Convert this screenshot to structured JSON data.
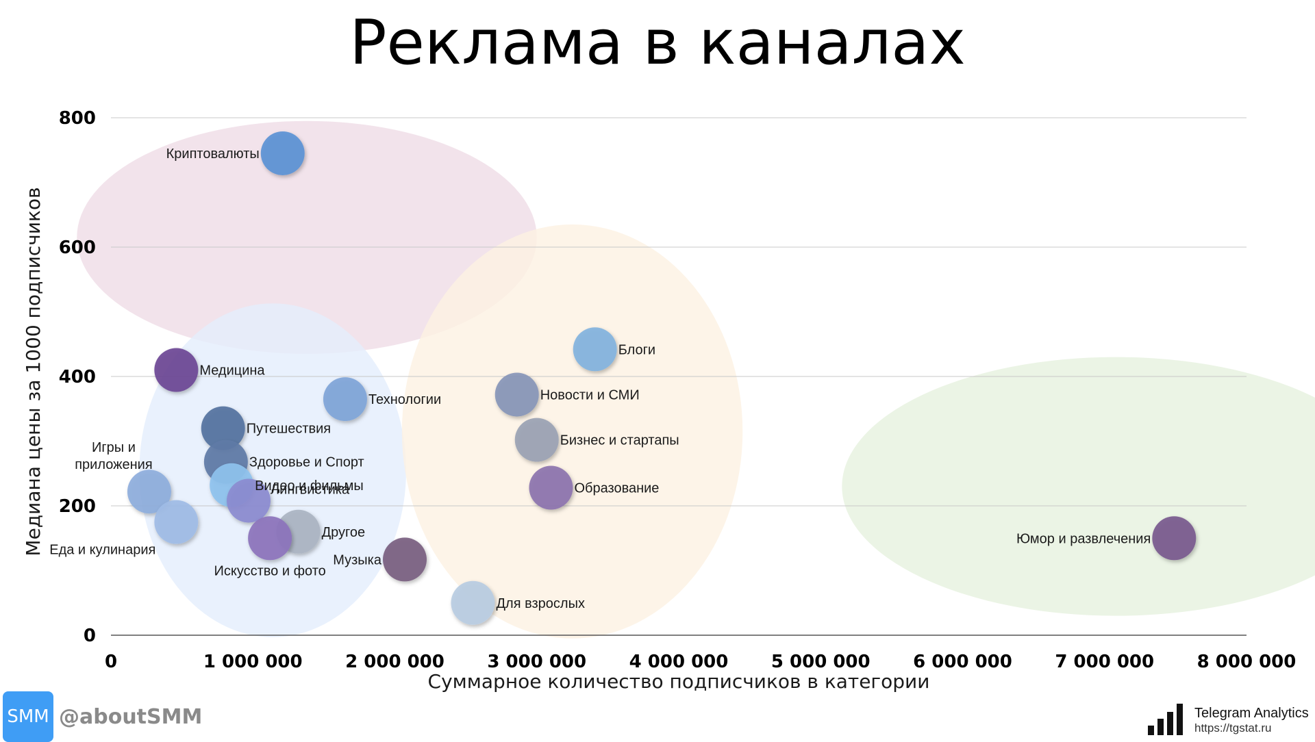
{
  "title": "Реклама в каналах",
  "brand": {
    "logo_text": "SMM",
    "handle": "@aboutSMM",
    "logo_color": "#3f9df5"
  },
  "source": {
    "name": "Telegram Analytics",
    "url": "https://tgstat.ru"
  },
  "chart_data": {
    "type": "scatter",
    "title": "Реклама в каналах",
    "xlabel": "Суммарное количество подписчиков в категории",
    "ylabel": "Медиана цены за 1000 подписчиков",
    "xlim": [
      0,
      8000000
    ],
    "ylim": [
      0,
      800
    ],
    "grid": "horizontal",
    "x_ticks": [
      {
        "value": 0,
        "label": "0"
      },
      {
        "value": 1000000,
        "label": "1 000 000"
      },
      {
        "value": 2000000,
        "label": "2 000 000"
      },
      {
        "value": 3000000,
        "label": "3 000 000"
      },
      {
        "value": 4000000,
        "label": "4 000 000"
      },
      {
        "value": 5000000,
        "label": "5 000 000"
      },
      {
        "value": 6000000,
        "label": "6 000 000"
      },
      {
        "value": 7000000,
        "label": "7 000 000"
      },
      {
        "value": 8000000,
        "label": "8 000 000"
      }
    ],
    "y_ticks": [
      {
        "value": 0,
        "label": "0"
      },
      {
        "value": 200,
        "label": "200"
      },
      {
        "value": 400,
        "label": "400"
      },
      {
        "value": 600,
        "label": "600"
      },
      {
        "value": 800,
        "label": "800"
      }
    ],
    "clusters": [
      {
        "x": 1380000,
        "y": 615,
        "rx": 1620000,
        "ry": 180,
        "color": "#efdce6"
      },
      {
        "x": 1140000,
        "y": 255,
        "rx": 940000,
        "ry": 258,
        "color": "#e4eefc"
      },
      {
        "x": 3250000,
        "y": 315,
        "rx": 1200000,
        "ry": 320,
        "color": "#fdf1e2"
      },
      {
        "x": 7080000,
        "y": 230,
        "rx": 1930000,
        "ry": 200,
        "color": "#e6f1de"
      }
    ],
    "points": [
      {
        "name": "Криптовалюты",
        "x": 1210000,
        "y": 745,
        "color": "#5b93d5"
      },
      {
        "name": "Медицина",
        "x": 460000,
        "y": 410,
        "color": "#6c4796"
      },
      {
        "name": "Технологии",
        "x": 1650000,
        "y": 365,
        "color": "#7fa5d8"
      },
      {
        "name": "Путешествия",
        "x": 790000,
        "y": 320,
        "color": "#5573a0"
      },
      {
        "name": "Игры и приложения",
        "x": 270000,
        "y": 222,
        "color": "#8eaedc"
      },
      {
        "name": "Здоровье и Спорт",
        "x": 810000,
        "y": 268,
        "color": "#5f7ba6"
      },
      {
        "name": "Видео и фильмы",
        "x": 850000,
        "y": 232,
        "color": "#8ec2ee"
      },
      {
        "name": "Лингвистика",
        "x": 970000,
        "y": 208,
        "color": "#8b8bd0"
      },
      {
        "name": "Еда и кулинария",
        "x": 460000,
        "y": 175,
        "color": "#9fbce6"
      },
      {
        "name": "Другое",
        "x": 1320000,
        "y": 160,
        "color": "#aab4c2"
      },
      {
        "name": "Искусство и фото",
        "x": 1120000,
        "y": 150,
        "color": "#8c74bc"
      },
      {
        "name": "Музыка",
        "x": 2070000,
        "y": 117,
        "color": "#7a5f80"
      },
      {
        "name": "Блоги",
        "x": 3410000,
        "y": 442,
        "color": "#82b3de"
      },
      {
        "name": "Новости и СМИ",
        "x": 2860000,
        "y": 372,
        "color": "#8796b8"
      },
      {
        "name": "Бизнес и стартапы",
        "x": 3000000,
        "y": 302,
        "color": "#9aa2b4"
      },
      {
        "name": "Образование",
        "x": 3100000,
        "y": 228,
        "color": "#8c74ae"
      },
      {
        "name": "Для взрослых",
        "x": 2550000,
        "y": 50,
        "color": "#b8cce2"
      },
      {
        "name": "Юмор и развлечения",
        "x": 7490000,
        "y": 150,
        "color": "#7a5a8e"
      }
    ]
  }
}
